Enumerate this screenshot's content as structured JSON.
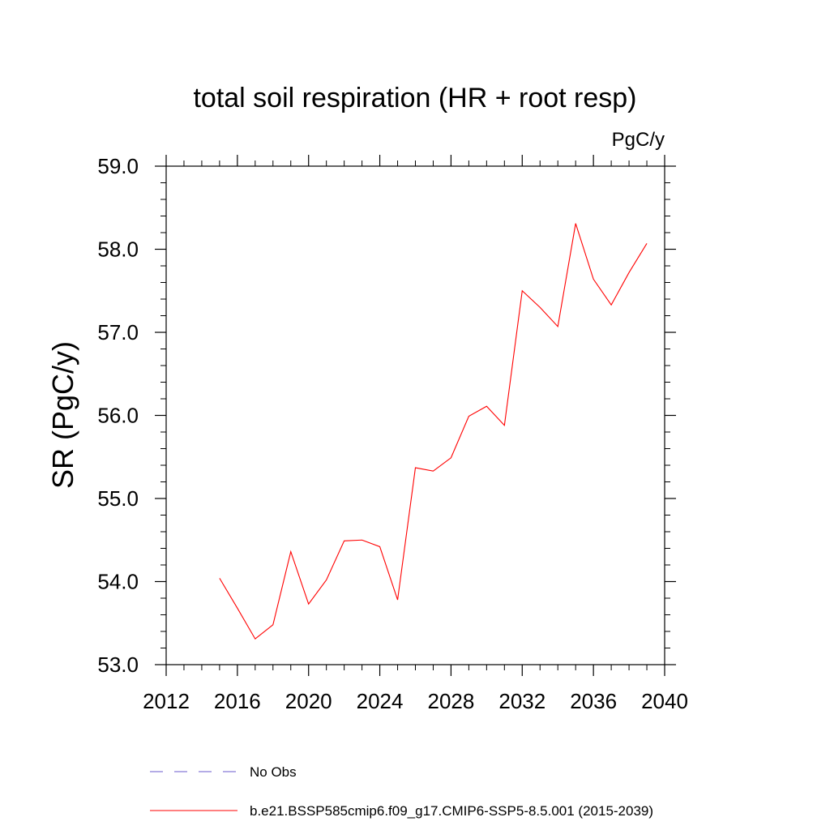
{
  "chart_data": {
    "type": "line",
    "title": "total soil respiration (HR + root resp)",
    "units": "PgC/y",
    "xlabel": "",
    "ylabel": "SR  (PgC/y)",
    "xlim": [
      2012,
      2040
    ],
    "ylim": [
      53.0,
      59.0
    ],
    "x_ticks": [
      2012,
      2016,
      2020,
      2024,
      2028,
      2032,
      2036,
      2040
    ],
    "x_tick_labels": [
      "2012",
      "2016",
      "2020",
      "2024",
      "2028",
      "2032",
      "2036",
      "2040"
    ],
    "y_ticks": [
      53.0,
      54.0,
      55.0,
      56.0,
      57.0,
      58.0,
      59.0
    ],
    "y_tick_labels": [
      "53.0",
      "54.0",
      "55.0",
      "56.0",
      "57.0",
      "58.0",
      "59.0"
    ],
    "grid": false,
    "legend_position": "bottom",
    "x": [
      2015,
      2016,
      2017,
      2018,
      2019,
      2020,
      2021,
      2022,
      2023,
      2024,
      2025,
      2026,
      2027,
      2028,
      2029,
      2030,
      2031,
      2032,
      2033,
      2034,
      2035,
      2036,
      2037,
      2038,
      2039
    ],
    "series": [
      {
        "name": "b.e21.BSSP585cmip6.f09_g17.CMIP6-SSP5-8.5.001 (2015-2039)",
        "color": "#ff0000",
        "style": "solid",
        "values": [
          54.04,
          53.68,
          53.31,
          53.48,
          54.36,
          53.73,
          54.02,
          54.49,
          54.5,
          54.42,
          53.78,
          55.37,
          55.33,
          55.49,
          55.99,
          56.11,
          55.88,
          57.5,
          57.3,
          57.07,
          58.31,
          57.64,
          57.33,
          57.72,
          58.07
        ]
      }
    ],
    "legend": [
      {
        "label": "No Obs",
        "color": "#6a5acd",
        "style": "dashed"
      },
      {
        "label": "b.e21.BSSP585cmip6.f09_g17.CMIP6-SSP5-8.5.001 (2015-2039)",
        "color": "#ff0000",
        "style": "solid"
      }
    ]
  }
}
